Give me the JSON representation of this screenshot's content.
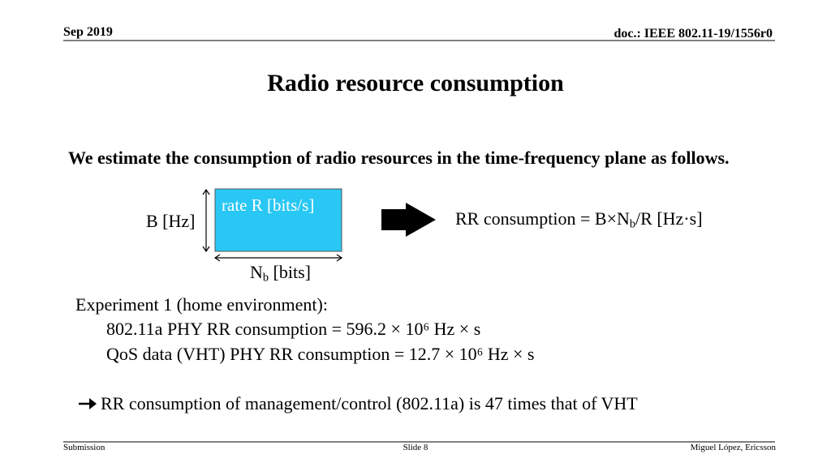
{
  "header": {
    "date": "Sep 2019",
    "doc": "doc.: IEEE 802.11-19/1556r0"
  },
  "title": "Radio resource consumption",
  "intro": "We estimate the consumption of radio resources in the time-frequency plane as follows.",
  "diagram": {
    "rate_label": "rate R [bits/s]",
    "bandwidth_label": "B [Hz]",
    "bits_label": [
      "N",
      "b",
      " [bits]"
    ],
    "formula": [
      "RR consumption = B×N",
      "b",
      "/R [Hz·s]"
    ]
  },
  "experiment": {
    "heading": "Experiment 1 (home environment):",
    "lines": [
      "802.11a PHY RR consumption = 596.2 × 10⁶ Hz × s",
      "QoS data (VHT) PHY RR consumption = 12.7 × 10⁶ Hz × s"
    ]
  },
  "conclusion": "RR consumption of management/control (802.11a) is 47 times that of VHT",
  "footer": {
    "left": "Submission",
    "center": "Slide 8",
    "right": "Miguel López, Ericsson"
  }
}
